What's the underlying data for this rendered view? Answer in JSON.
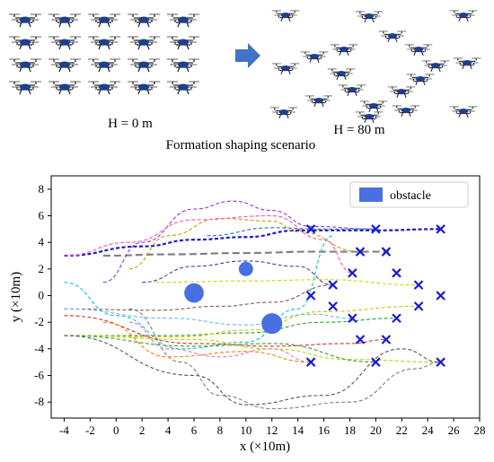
{
  "figure": {
    "label_ground": "H = 0 m",
    "label_air": "H = 80 m",
    "caption": "Formation shaping scenario",
    "arrow_color": "#4472c4",
    "drone_icon": "quadcopter-icon"
  },
  "chart_data": {
    "type": "line",
    "xlabel": "x (×10m)",
    "ylabel": "y (×10m)",
    "xlim": [
      -5,
      28
    ],
    "ylim": [
      -9.2,
      9.0
    ],
    "xticks": [
      -4,
      -2,
      0,
      2,
      4,
      6,
      8,
      10,
      12,
      14,
      16,
      18,
      20,
      22,
      24,
      26,
      28
    ],
    "yticks": [
      -8,
      -6,
      -4,
      -2,
      0,
      2,
      4,
      6,
      8
    ],
    "grid": false,
    "legend": {
      "position": "top-right",
      "entries": [
        "obstacle"
      ]
    },
    "obstacle_color": "#4a6fe3",
    "target_color": "#1a1ad6",
    "obstacles": [
      {
        "x": 6,
        "y": 0.2,
        "r": 0.75
      },
      {
        "x": 10,
        "y": 2.0,
        "r": 0.55
      },
      {
        "x": 12,
        "y": -2.1,
        "r": 0.8
      }
    ],
    "targets": [
      [
        15,
        5
      ],
      [
        20,
        5
      ],
      [
        25,
        5
      ],
      [
        18.8,
        3.3
      ],
      [
        20.8,
        3.3
      ],
      [
        18.2,
        1.7
      ],
      [
        21.6,
        1.7
      ],
      [
        16.7,
        0.8
      ],
      [
        23.3,
        0.8
      ],
      [
        15,
        0
      ],
      [
        25,
        0
      ],
      [
        16.7,
        -0.8
      ],
      [
        23.3,
        -0.8
      ],
      [
        18.2,
        -1.7
      ],
      [
        21.6,
        -1.7
      ],
      [
        18.8,
        -3.3
      ],
      [
        20.8,
        -3.3
      ],
      [
        15,
        -5
      ],
      [
        20,
        -5
      ],
      [
        25,
        -5
      ]
    ],
    "series": [
      {
        "color": "#1c1cc8",
        "values": [
          [
            -4,
            3
          ],
          [
            2,
            3.7
          ],
          [
            6,
            4.2
          ],
          [
            10,
            4.4
          ],
          [
            14,
            4.9
          ],
          [
            20,
            4.9
          ],
          [
            25,
            5
          ]
        ]
      },
      {
        "color": "#808080",
        "values": [
          [
            -1,
            3
          ],
          [
            4,
            3.1
          ],
          [
            10,
            3.2
          ],
          [
            15,
            3.3
          ],
          [
            20,
            3.3
          ],
          [
            21,
            3.3
          ]
        ]
      },
      {
        "color": "#9933cc",
        "values": [
          [
            -1,
            1
          ],
          [
            2,
            4
          ],
          [
            6,
            6.5
          ],
          [
            9,
            7.1
          ],
          [
            12,
            6.4
          ],
          [
            15,
            5.2
          ],
          [
            20,
            5
          ]
        ]
      },
      {
        "color": "#cc9900",
        "values": [
          [
            1,
            2
          ],
          [
            4,
            4.5
          ],
          [
            8,
            5.8
          ],
          [
            12,
            5.6
          ],
          [
            14,
            4.8
          ],
          [
            18.8,
            3.3
          ]
        ]
      },
      {
        "color": "#ff4db8",
        "values": [
          [
            -4,
            3
          ],
          [
            1,
            4
          ],
          [
            6,
            5.7
          ],
          [
            12,
            6
          ],
          [
            16,
            4.2
          ],
          [
            18.2,
            1.7
          ]
        ]
      },
      {
        "color": "#8c564b",
        "values": [
          [
            -4,
            -1
          ],
          [
            3,
            -1.1
          ],
          [
            8,
            -0.8
          ],
          [
            12,
            -0.5
          ],
          [
            16.7,
            0.8
          ]
        ]
      },
      {
        "color": "#2ca02c",
        "values": [
          [
            -4,
            -3
          ],
          [
            4,
            -3
          ],
          [
            10,
            -2.8
          ],
          [
            16,
            -2
          ],
          [
            21.6,
            -1.7
          ]
        ]
      },
      {
        "color": "#c8c800",
        "values": [
          [
            -4,
            -3
          ],
          [
            5,
            -3.1
          ],
          [
            10,
            -2.6
          ],
          [
            16,
            -1.2
          ],
          [
            23.3,
            -0.8
          ]
        ]
      },
      {
        "color": "#17becf",
        "values": [
          [
            -4,
            1
          ],
          [
            0,
            -1.5
          ],
          [
            5,
            -4
          ],
          [
            10,
            -3.5
          ],
          [
            14,
            -1
          ],
          [
            16.7,
            4.5
          ]
        ]
      },
      {
        "color": "#7f7f7f",
        "values": [
          [
            1,
            -1
          ],
          [
            5,
            -5
          ],
          [
            8,
            -7.5
          ],
          [
            12,
            -8.5
          ],
          [
            18,
            -8
          ],
          [
            23,
            -5.5
          ],
          [
            25,
            -5
          ]
        ]
      },
      {
        "color": "#d62728",
        "values": [
          [
            -4,
            -1.5
          ],
          [
            6,
            -3.6
          ],
          [
            12,
            -3.8
          ],
          [
            18,
            -3.6
          ],
          [
            20.8,
            -3.3
          ]
        ]
      },
      {
        "color": "#aadd00",
        "values": [
          [
            -4,
            -3
          ],
          [
            6,
            -3.3
          ],
          [
            12,
            -4
          ],
          [
            18,
            -4.8
          ],
          [
            25,
            -5
          ]
        ]
      },
      {
        "color": "#e377c2",
        "values": [
          [
            1,
            -2
          ],
          [
            4,
            -4
          ],
          [
            8,
            -4.6
          ],
          [
            12,
            -4
          ],
          [
            15,
            -5
          ]
        ]
      },
      {
        "color": "#4a3aa8",
        "values": [
          [
            2,
            1
          ],
          [
            6,
            2.2
          ],
          [
            10,
            2.6
          ],
          [
            14,
            2.2
          ],
          [
            16.7,
            0.8
          ]
        ]
      },
      {
        "color": "#d4d400",
        "values": [
          [
            3,
            1
          ],
          [
            10,
            1.1
          ],
          [
            16,
            1.2
          ],
          [
            23.3,
            0.8
          ]
        ]
      },
      {
        "color": "#66bbee",
        "values": [
          [
            -4,
            -1
          ],
          [
            4,
            -1.7
          ],
          [
            10,
            -2.2
          ],
          [
            15,
            -1.4
          ],
          [
            18.2,
            -1.7
          ]
        ]
      },
      {
        "color": "#ff7f0e",
        "values": [
          [
            -1,
            -2
          ],
          [
            4,
            -4.6
          ],
          [
            10,
            -4.2
          ],
          [
            15,
            -5
          ]
        ]
      },
      {
        "color": "#2ca02c",
        "values": [
          [
            -4,
            -3
          ],
          [
            6,
            -3.8
          ],
          [
            12,
            -3.6
          ],
          [
            20,
            -5
          ]
        ]
      },
      {
        "color": "#1f77b4",
        "values": [
          [
            7,
            4.5
          ],
          [
            12,
            5.1
          ],
          [
            16,
            5
          ],
          [
            20,
            5
          ]
        ]
      },
      {
        "color": "#555555",
        "values": [
          [
            -4,
            -3
          ],
          [
            6,
            -6
          ],
          [
            10,
            -8.2
          ],
          [
            16,
            -7.5
          ],
          [
            22,
            -4
          ],
          [
            25,
            -5
          ]
        ]
      }
    ]
  }
}
